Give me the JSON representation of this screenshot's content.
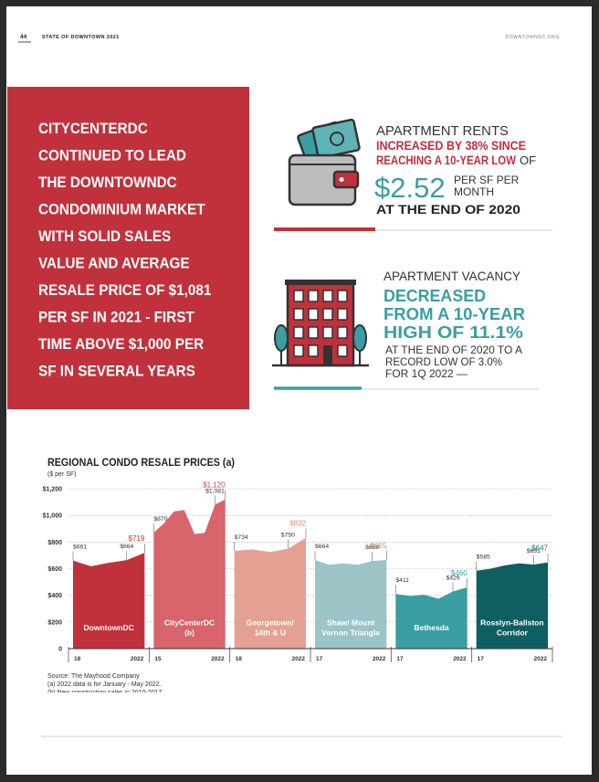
{
  "header": {
    "page_number": "44",
    "title": "STATE OF DOWNTOWN 2021",
    "site": "DOWNTOWNDC.ORG"
  },
  "callout": {
    "lines": [
      "CITYCENTERDC",
      "CONTINUED TO LEAD",
      "THE DOWNTOWNDC",
      "CONDOMINIUM MARKET",
      "WITH SOLID SALES",
      "VALUE AND AVERAGE",
      "RESALE PRICE OF $1,081",
      "PER SF IN 2021 - FIRST",
      "TIME ABOVE $1,000 PER",
      "SF IN SEVERAL YEARS"
    ]
  },
  "stats": [
    {
      "heading": "APARTMENT RENTS",
      "highlight": [
        "INCREASED BY 38% SINCE",
        "REACHING A 10-YEAR LOW"
      ],
      "connector": "OF",
      "figure": "$2.52",
      "figure_unit": [
        "PER SF PER",
        "MONTH"
      ],
      "closing": [
        "AT THE END OF 2020"
      ]
    },
    {
      "heading": "APARTMENT VACANCY",
      "highlight": [
        "DECREASED",
        "FROM A 10-YEAR",
        "HIGH OF 11.1%"
      ],
      "closing": [
        "AT THE END OF 2020 TO A",
        "RECORD LOW OF 3.0%",
        "FOR 1Q 2022 —"
      ]
    }
  ],
  "chart_data": {
    "type": "area",
    "title": "REGIONAL CONDO RESALE PRICES (a)",
    "subtitle": "($ per SF)",
    "ylim": [
      0,
      1200
    ],
    "yticks": [
      0,
      {
        "value": 200,
        "label": "$200"
      },
      {
        "value": 400,
        "label": "$400"
      },
      {
        "value": 600,
        "label": "$600"
      },
      {
        "value": 800,
        "label": "$800"
      },
      {
        "value": 1000,
        "label": "$1,000"
      },
      {
        "value": 1200,
        "label": "$1,200"
      }
    ],
    "grid": true,
    "series": [
      {
        "name": [
          "DowntownDC"
        ],
        "color": "#c1313c",
        "highlight_color": "#c1313c",
        "start_label": "18",
        "end_label": "2022",
        "values": [
          661,
          618,
          645,
          664,
          719
        ],
        "value_labels": [
          "$661",
          null,
          null,
          "$664",
          "$719"
        ]
      },
      {
        "name": [
          "CityCenterDC",
          "(b)"
        ],
        "color": "#d9646b",
        "highlight_color": "#c9404a",
        "start_label": "15",
        "end_label": "2022",
        "values": [
          870,
          940,
          1030,
          1040,
          860,
          870,
          1081,
          1120
        ],
        "value_labels": [
          "$870",
          null,
          null,
          null,
          null,
          null,
          "$1,081",
          "$1,120"
        ]
      },
      {
        "name": [
          "Georgetown/",
          "14th & U"
        ],
        "color": "#e3a093",
        "highlight_color": "#e58a78",
        "start_label": "18",
        "end_label": "2022",
        "values": [
          734,
          745,
          725,
          750,
          832
        ],
        "value_labels": [
          "$734",
          null,
          null,
          "$750",
          "$832"
        ]
      },
      {
        "name": [
          "Shaw/ Mount",
          "Vernon Triangle"
        ],
        "color": "#9cc4c6",
        "highlight_color": "#e8836e",
        "start_label": "17",
        "end_label": "2022",
        "values": [
          664,
          630,
          640,
          630,
          658,
          665
        ],
        "value_labels": [
          "$664",
          null,
          null,
          null,
          "$658",
          "$665"
        ]
      },
      {
        "name": [
          "Bethesda"
        ],
        "color": "#3a9ea3",
        "highlight_color": "#3a9ea3",
        "start_label": "17",
        "end_label": "2022",
        "values": [
          411,
          395,
          405,
          375,
          429,
          460
        ],
        "value_labels": [
          "$411",
          null,
          null,
          null,
          "$429",
          "$460"
        ]
      },
      {
        "name": [
          "Rosslyn-Ballston",
          "Corridor"
        ],
        "color": "#0f5f62",
        "highlight_color": "#137a80",
        "start_label": "17",
        "end_label": "2022",
        "values": [
          585,
          600,
          625,
          640,
          631,
          647
        ],
        "value_labels": [
          "$585",
          null,
          null,
          null,
          "$631",
          "$647"
        ]
      }
    ]
  },
  "footnotes": [
    "Source: The Mayhood Company",
    "(a)  2022 data is for January - May 2022.",
    "(b)  New construction sales in 2010-2017"
  ]
}
